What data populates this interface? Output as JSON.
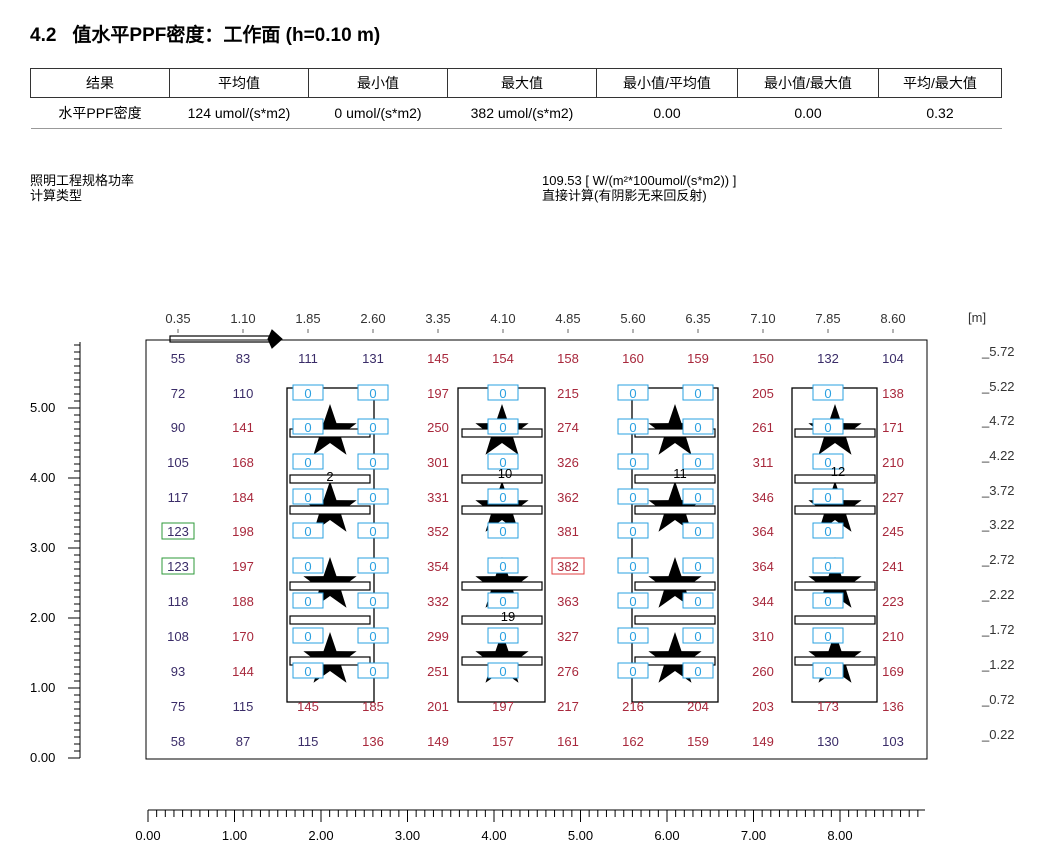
{
  "section": {
    "number": "4.2",
    "title": "值水平PPF密度：工作面 (h=0.10 m)"
  },
  "results_table": {
    "headers": [
      "结果",
      "平均值",
      "最小值",
      "最大值",
      "最小值/平均值",
      "最小值/最大值",
      "平均/最大值"
    ],
    "row": [
      "水平PPF密度",
      "124 umol/(s*m2)",
      "0 umol/(s*m2)",
      "382 umol/(s*m2)",
      "0.00",
      "0.00",
      "0.32"
    ]
  },
  "info": {
    "labels": [
      "照明工程规格功率",
      "计算类型"
    ],
    "values": [
      "109.53 [ W/(m²*100umol/(s*m2)) ]",
      "直接计算(有阴影无来回反射)"
    ]
  },
  "plot": {
    "unit_label": "[m]",
    "top_ticks": [
      "0.35",
      "1.10",
      "1.85",
      "2.60",
      "3.35",
      "4.10",
      "4.85",
      "5.60",
      "6.35",
      "7.10",
      "7.85",
      "8.60"
    ],
    "right_ticks": [
      "5.72",
      "5.22",
      "4.72",
      "4.22",
      "3.72",
      "3.22",
      "2.72",
      "2.22",
      "1.72",
      "1.22",
      "0.72",
      "0.22"
    ],
    "left_ticks": [
      "5.00",
      "4.00",
      "3.00",
      "2.00",
      "1.00",
      "0.00"
    ],
    "bottom_ticks": [
      "0.00",
      "1.00",
      "2.00",
      "3.00",
      "4.00",
      "5.00",
      "6.00",
      "7.00",
      "8.00"
    ],
    "grid_values": [
      [
        55,
        83,
        111,
        131,
        145,
        154,
        158,
        160,
        159,
        150,
        132,
        104
      ],
      [
        72,
        110,
        0,
        0,
        197,
        0,
        215,
        0,
        0,
        205,
        0,
        138
      ],
      [
        90,
        141,
        0,
        0,
        250,
        0,
        274,
        0,
        0,
        261,
        0,
        171
      ],
      [
        105,
        168,
        0,
        0,
        301,
        0,
        326,
        0,
        0,
        311,
        0,
        210
      ],
      [
        117,
        184,
        0,
        0,
        331,
        0,
        362,
        0,
        0,
        346,
        0,
        227
      ],
      [
        123,
        198,
        0,
        0,
        352,
        0,
        381,
        0,
        0,
        364,
        0,
        245
      ],
      [
        123,
        197,
        0,
        0,
        354,
        0,
        382,
        0,
        0,
        364,
        0,
        241
      ],
      [
        118,
        188,
        0,
        0,
        332,
        0,
        363,
        0,
        0,
        344,
        0,
        223
      ],
      [
        108,
        170,
        0,
        0,
        299,
        0,
        327,
        0,
        0,
        310,
        0,
        210
      ],
      [
        93,
        144,
        0,
        0,
        251,
        0,
        276,
        0,
        0,
        260,
        0,
        169
      ],
      [
        75,
        115,
        145,
        185,
        201,
        197,
        217,
        216,
        204,
        203,
        173,
        136
      ],
      [
        58,
        87,
        115,
        136,
        149,
        157,
        161,
        162,
        159,
        149,
        130,
        103
      ]
    ],
    "min_marks": [
      "123",
      "123"
    ],
    "max_mark": "382",
    "luminaire_labels": [
      "2",
      "10",
      "11",
      "12",
      "19"
    ],
    "colors": {
      "low": "#3a2c68",
      "high": "#a8283c",
      "zero_box": "#2aa0e0",
      "min_box": "#2e9a3a",
      "max_box": "#e04040"
    }
  }
}
